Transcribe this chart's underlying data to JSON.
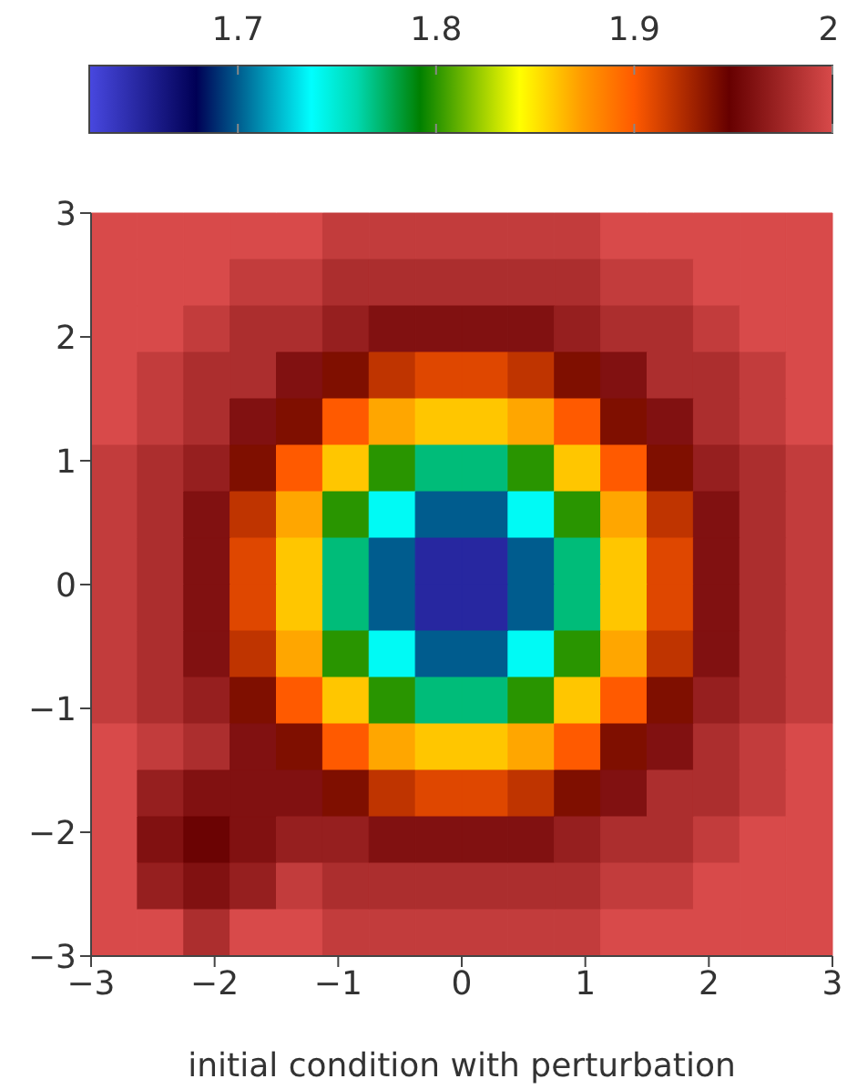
{
  "chart_data": {
    "type": "heatmap",
    "xlabel": "initial condition with perturbation",
    "xlim": [
      -3,
      3
    ],
    "ylim": [
      -3,
      3
    ],
    "xticks": [
      -3,
      -2,
      -1,
      0,
      1,
      2,
      3
    ],
    "yticks": [
      -3,
      -2,
      -1,
      0,
      1,
      2,
      3
    ],
    "clim": [
      1.625,
      2
    ],
    "cticks": [
      1.7,
      1.8,
      1.9,
      2
    ],
    "cells": [
      [
        2,
        2,
        2,
        2,
        2,
        1.99,
        1.99,
        1.99,
        1.99,
        1.99,
        1.99,
        2,
        2,
        2,
        2,
        2
      ],
      [
        2,
        2,
        2,
        1.99,
        1.99,
        1.98,
        1.98,
        1.98,
        1.98,
        1.98,
        1.98,
        1.99,
        1.99,
        2,
        2,
        2
      ],
      [
        2,
        2,
        1.99,
        1.98,
        1.98,
        1.97,
        1.96,
        1.96,
        1.96,
        1.96,
        1.97,
        1.98,
        1.98,
        1.99,
        2,
        2
      ],
      [
        2,
        1.99,
        1.98,
        1.98,
        1.96,
        1.94,
        1.92,
        1.91,
        1.91,
        1.92,
        1.94,
        1.96,
        1.98,
        1.98,
        1.99,
        2
      ],
      [
        2,
        1.99,
        1.98,
        1.96,
        1.94,
        1.9,
        1.87,
        1.86,
        1.86,
        1.87,
        1.9,
        1.94,
        1.96,
        1.98,
        1.99,
        2
      ],
      [
        1.99,
        1.98,
        1.97,
        1.94,
        1.9,
        1.86,
        1.8,
        1.77,
        1.77,
        1.8,
        1.86,
        1.9,
        1.94,
        1.97,
        1.98,
        1.99
      ],
      [
        1.99,
        1.98,
        1.96,
        1.92,
        1.87,
        1.8,
        1.74,
        1.7,
        1.7,
        1.74,
        1.8,
        1.87,
        1.92,
        1.96,
        1.98,
        1.99
      ],
      [
        1.99,
        1.98,
        1.96,
        1.91,
        1.86,
        1.77,
        1.7,
        1.65,
        1.65,
        1.7,
        1.77,
        1.86,
        1.91,
        1.96,
        1.98,
        1.99
      ],
      [
        1.99,
        1.98,
        1.96,
        1.91,
        1.86,
        1.77,
        1.7,
        1.65,
        1.65,
        1.7,
        1.77,
        1.86,
        1.91,
        1.96,
        1.98,
        1.99
      ],
      [
        1.99,
        1.98,
        1.96,
        1.92,
        1.87,
        1.8,
        1.74,
        1.7,
        1.7,
        1.74,
        1.8,
        1.87,
        1.92,
        1.96,
        1.98,
        1.99
      ],
      [
        1.99,
        1.98,
        1.97,
        1.94,
        1.9,
        1.86,
        1.8,
        1.77,
        1.77,
        1.8,
        1.86,
        1.9,
        1.94,
        1.97,
        1.98,
        1.99
      ],
      [
        2,
        1.99,
        1.98,
        1.96,
        1.94,
        1.9,
        1.87,
        1.86,
        1.86,
        1.87,
        1.9,
        1.94,
        1.96,
        1.98,
        1.99,
        2
      ],
      [
        2,
        1.97,
        1.96,
        1.96,
        1.96,
        1.94,
        1.92,
        1.91,
        1.91,
        1.92,
        1.94,
        1.96,
        1.98,
        1.98,
        1.99,
        2
      ],
      [
        2,
        1.96,
        1.95,
        1.96,
        1.97,
        1.97,
        1.96,
        1.96,
        1.96,
        1.96,
        1.97,
        1.98,
        1.98,
        1.99,
        2,
        2
      ],
      [
        2,
        1.97,
        1.96,
        1.97,
        1.99,
        1.98,
        1.98,
        1.98,
        1.98,
        1.98,
        1.98,
        1.99,
        1.99,
        2,
        2,
        2
      ],
      [
        2,
        2,
        1.98,
        2,
        2,
        1.99,
        1.99,
        1.99,
        1.99,
        1.99,
        1.99,
        2,
        2,
        2,
        2,
        2
      ]
    ]
  }
}
